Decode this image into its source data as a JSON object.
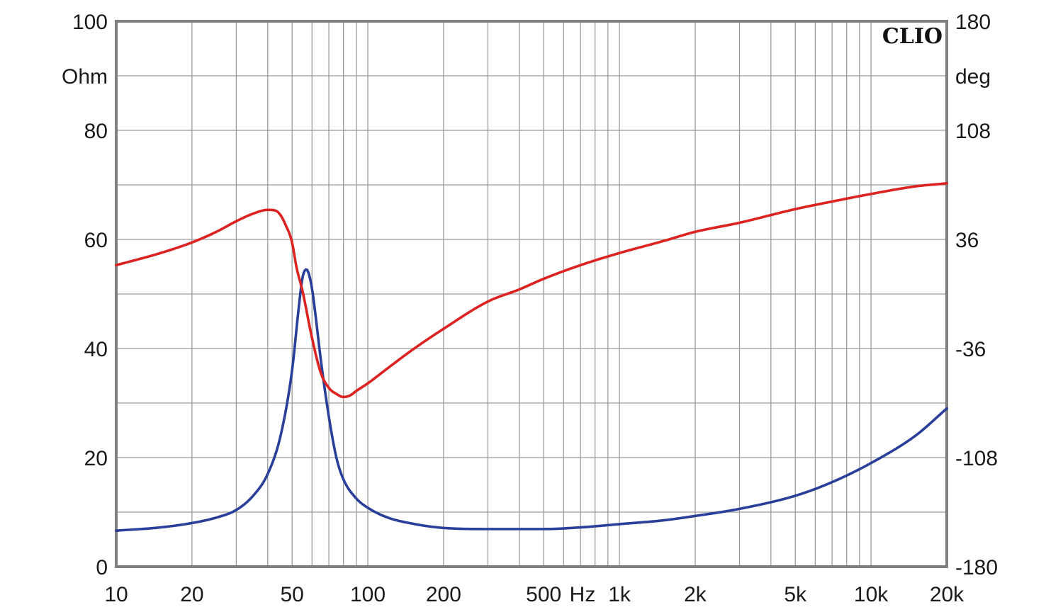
{
  "chart_data": {
    "type": "line",
    "brand": "CLIO",
    "x_scale": "log",
    "xlim": [
      10,
      20000
    ],
    "x_ticks": [
      {
        "value": 10,
        "label": "10"
      },
      {
        "value": 20,
        "label": "20"
      },
      {
        "value": 50,
        "label": "50"
      },
      {
        "value": 100,
        "label": "100"
      },
      {
        "value": 200,
        "label": "200"
      },
      {
        "value": 500,
        "label": "500"
      },
      {
        "value": 1000,
        "label": "1k"
      },
      {
        "value": 2000,
        "label": "2k"
      },
      {
        "value": 5000,
        "label": "5k"
      },
      {
        "value": 10000,
        "label": "10k"
      },
      {
        "value": 20000,
        "label": "20k"
      }
    ],
    "x_unit_label": "Hz",
    "left_axis": {
      "unit": "Ohm",
      "ylim": [
        0,
        100
      ],
      "ticks": [
        0,
        20,
        40,
        60,
        80,
        100
      ]
    },
    "right_axis": {
      "unit": "deg",
      "ylim": [
        -180,
        180
      ],
      "ticks": [
        -180,
        -108,
        -36,
        36,
        108,
        180
      ]
    },
    "grid": true,
    "colors": {
      "grid": "#9a9a9a",
      "frame": "#808080",
      "impedance": "#2a3f9a",
      "phase": "#dd2222",
      "text": "#1a1a1a"
    },
    "series": [
      {
        "axis": "left",
        "color": "#2a3f9a",
        "x": [
          10,
          15,
          20,
          25,
          30,
          35,
          40,
          45,
          50,
          53,
          55,
          57,
          58,
          60,
          62,
          65,
          70,
          75,
          80,
          90,
          100,
          120,
          150,
          200,
          300,
          500,
          700,
          1000,
          1500,
          2000,
          3000,
          5000,
          7000,
          10000,
          15000,
          20000
        ],
        "y": [
          6.6,
          7.2,
          8.0,
          9.0,
          10.4,
          13.0,
          17.0,
          24.0,
          36.0,
          47.0,
          53.0,
          54.5,
          54.0,
          51.0,
          46.0,
          38.0,
          27.5,
          20.0,
          16.0,
          12.5,
          10.8,
          9.0,
          7.9,
          7.1,
          6.9,
          6.9,
          7.2,
          7.8,
          8.5,
          9.3,
          10.6,
          13.0,
          15.5,
          19.0,
          24.0,
          29.0
        ]
      },
      {
        "axis": "right",
        "color": "#dd2222",
        "x": [
          10,
          15,
          20,
          25,
          30,
          35,
          40,
          43,
          45,
          47,
          50,
          52,
          55,
          60,
          65,
          70,
          75,
          80,
          85,
          90,
          100,
          120,
          150,
          200,
          300,
          400,
          500,
          700,
          1000,
          1500,
          2000,
          3000,
          5000,
          7000,
          10000,
          15000,
          20000
        ],
        "y": [
          19,
          27,
          34,
          41,
          48,
          53,
          55.5,
          55,
          52,
          46,
          34,
          18,
          2,
          -29,
          -52,
          -62,
          -66,
          -68,
          -67,
          -64,
          -59,
          -49,
          -37,
          -23,
          -5,
          3,
          10,
          19,
          27,
          35,
          41,
          47,
          56,
          61,
          66,
          71,
          73
        ]
      }
    ]
  }
}
